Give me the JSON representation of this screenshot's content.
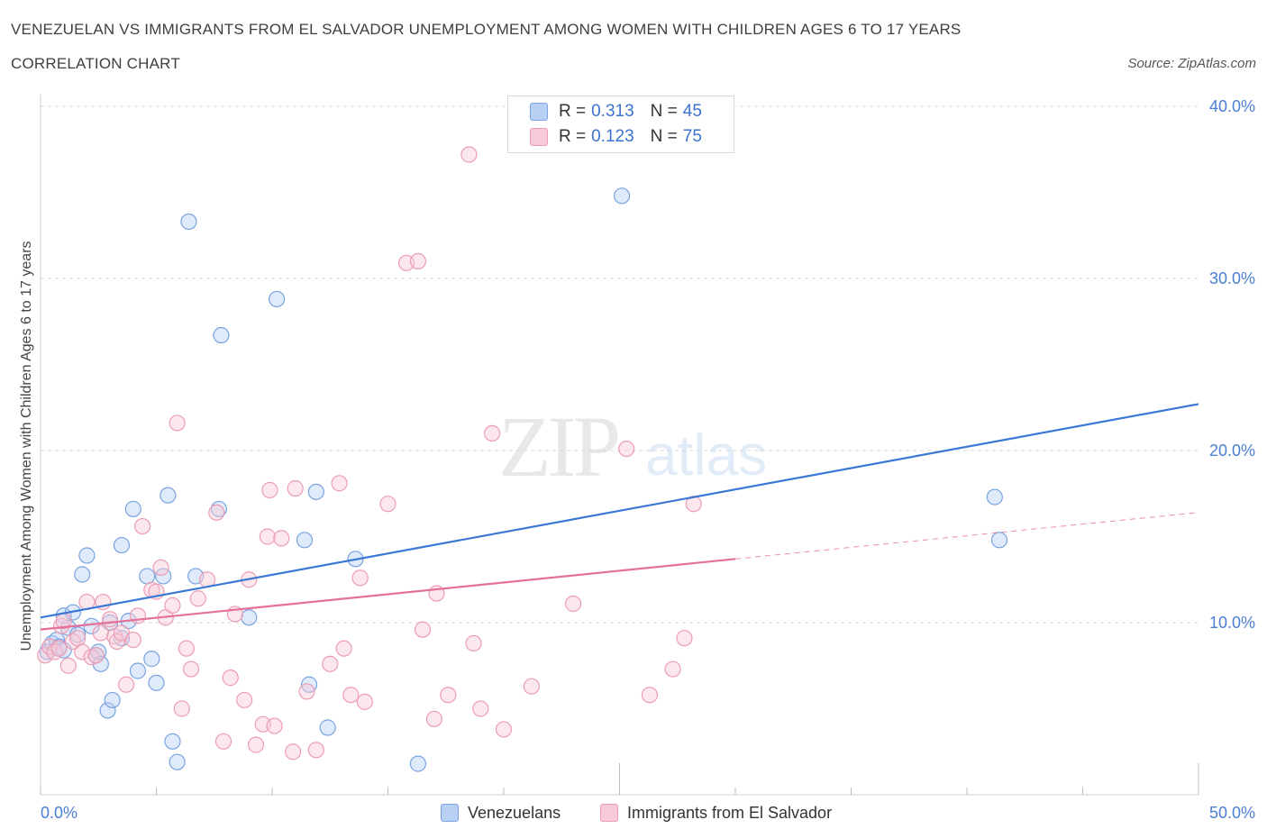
{
  "title": "VENEZUELAN VS IMMIGRANTS FROM EL SALVADOR UNEMPLOYMENT AMONG WOMEN WITH CHILDREN AGES 6 TO 17 YEARS",
  "subtitle": "CORRELATION CHART",
  "source": "Source: ZipAtlas.com",
  "watermark": {
    "zip": "ZIP",
    "atlas": "atlas"
  },
  "legend_top": {
    "rows": [
      {
        "r_label": "R = ",
        "r_value": "0.313",
        "n_label": "N = ",
        "n_value": "45"
      },
      {
        "r_label": "R = ",
        "r_value": "0.123",
        "n_label": "N = ",
        "n_value": "75"
      }
    ]
  },
  "legend_bottom": {
    "series1": "Venezuelans",
    "series2": "Immigrants from El Salvador"
  },
  "colors": {
    "blue": "#3a78d4",
    "pink": "#e4709a",
    "blue_fill": "#b7d0f3",
    "pink_fill": "#f8c9d8"
  },
  "chart_data": {
    "type": "scatter",
    "title": "VENEZUELAN VS IMMIGRANTS FROM EL SALVADOR UNEMPLOYMENT AMONG WOMEN WITH CHILDREN AGES 6 TO 17 YEARS",
    "subtitle": "CORRELATION CHART",
    "ylabel": "Unemployment Among Women with Children Ages 6 to 17 years",
    "xlabel": "",
    "xlim": [
      0,
      50
    ],
    "ylim": [
      0,
      40
    ],
    "x_tick_labels": [
      "0.0%",
      "50.0%"
    ],
    "y_ticks": [
      10,
      20,
      30,
      40
    ],
    "y_tick_labels": [
      "10.0%",
      "20.0%",
      "30.0%",
      "40.0%"
    ],
    "grid": true,
    "legend_position": "top-center",
    "series": [
      {
        "name": "Venezuelans",
        "R": 0.313,
        "N": 45,
        "trend": {
          "x": [
            0,
            50
          ],
          "y": [
            10.3,
            22.7
          ]
        },
        "points": [
          [
            0.3,
            8.3
          ],
          [
            0.5,
            8.8
          ],
          [
            0.7,
            9.0
          ],
          [
            0.8,
            8.6
          ],
          [
            1.0,
            8.4
          ],
          [
            1.0,
            10.4
          ],
          [
            1.2,
            9.7
          ],
          [
            1.4,
            10.6
          ],
          [
            1.6,
            9.3
          ],
          [
            1.8,
            12.8
          ],
          [
            2.0,
            13.9
          ],
          [
            2.2,
            9.8
          ],
          [
            2.4,
            8.1
          ],
          [
            2.5,
            8.3
          ],
          [
            2.6,
            7.6
          ],
          [
            2.9,
            4.9
          ],
          [
            3.0,
            10.0
          ],
          [
            3.1,
            5.5
          ],
          [
            3.5,
            14.5
          ],
          [
            3.5,
            9.1
          ],
          [
            3.8,
            10.1
          ],
          [
            4.0,
            16.6
          ],
          [
            4.2,
            7.2
          ],
          [
            4.6,
            12.7
          ],
          [
            4.8,
            7.9
          ],
          [
            5.0,
            6.5
          ],
          [
            5.3,
            12.7
          ],
          [
            5.5,
            17.4
          ],
          [
            5.7,
            3.1
          ],
          [
            5.9,
            1.9
          ],
          [
            6.4,
            33.3
          ],
          [
            6.7,
            12.7
          ],
          [
            7.7,
            16.6
          ],
          [
            7.8,
            26.7
          ],
          [
            9.0,
            10.3
          ],
          [
            10.2,
            28.8
          ],
          [
            11.4,
            14.8
          ],
          [
            11.6,
            6.4
          ],
          [
            11.9,
            17.6
          ],
          [
            12.4,
            3.9
          ],
          [
            13.6,
            13.7
          ],
          [
            16.3,
            1.8
          ],
          [
            25.1,
            34.8
          ],
          [
            41.2,
            17.3
          ],
          [
            41.4,
            14.8
          ]
        ]
      },
      {
        "name": "Immigrants from El Salvador",
        "R": 0.123,
        "N": 75,
        "trend": {
          "x": [
            0,
            30
          ],
          "y": [
            9.6,
            13.7
          ]
        },
        "trend_extension": {
          "x": [
            30,
            50
          ],
          "y": [
            13.7,
            16.4
          ]
        },
        "points": [
          [
            0.2,
            8.1
          ],
          [
            0.4,
            8.6
          ],
          [
            0.6,
            8.3
          ],
          [
            0.8,
            8.5
          ],
          [
            0.9,
            9.8
          ],
          [
            1.0,
            10.1
          ],
          [
            1.2,
            7.5
          ],
          [
            1.4,
            8.9
          ],
          [
            1.6,
            9.1
          ],
          [
            1.8,
            8.3
          ],
          [
            2.0,
            11.2
          ],
          [
            2.2,
            8.0
          ],
          [
            2.4,
            8.1
          ],
          [
            2.6,
            9.4
          ],
          [
            2.7,
            11.2
          ],
          [
            3.0,
            10.2
          ],
          [
            3.2,
            9.2
          ],
          [
            3.3,
            8.9
          ],
          [
            3.5,
            9.4
          ],
          [
            3.7,
            6.4
          ],
          [
            4.0,
            9.0
          ],
          [
            4.2,
            10.4
          ],
          [
            4.4,
            15.6
          ],
          [
            4.8,
            11.9
          ],
          [
            5.0,
            11.8
          ],
          [
            5.2,
            13.2
          ],
          [
            5.4,
            10.3
          ],
          [
            5.7,
            11.0
          ],
          [
            5.9,
            21.6
          ],
          [
            6.1,
            5.0
          ],
          [
            6.3,
            8.5
          ],
          [
            6.5,
            7.3
          ],
          [
            6.8,
            11.4
          ],
          [
            7.2,
            12.5
          ],
          [
            7.6,
            16.4
          ],
          [
            7.9,
            3.1
          ],
          [
            8.2,
            6.8
          ],
          [
            8.4,
            10.5
          ],
          [
            8.8,
            5.5
          ],
          [
            9.0,
            12.5
          ],
          [
            9.3,
            2.9
          ],
          [
            9.6,
            4.1
          ],
          [
            9.8,
            15.0
          ],
          [
            10.1,
            4.0
          ],
          [
            10.4,
            14.9
          ],
          [
            11.5,
            6.0
          ],
          [
            11.9,
            2.6
          ],
          [
            12.5,
            7.6
          ],
          [
            12.9,
            18.1
          ],
          [
            13.4,
            5.8
          ],
          [
            13.8,
            12.6
          ],
          [
            14.0,
            5.4
          ],
          [
            15.0,
            16.9
          ],
          [
            15.8,
            30.9
          ],
          [
            16.3,
            31.0
          ],
          [
            16.5,
            9.6
          ],
          [
            17.0,
            4.4
          ],
          [
            17.6,
            5.8
          ],
          [
            18.5,
            37.2
          ],
          [
            18.7,
            8.8
          ],
          [
            19.5,
            21.0
          ],
          [
            20.0,
            3.8
          ],
          [
            21.2,
            6.3
          ],
          [
            23.0,
            11.1
          ],
          [
            25.3,
            20.1
          ],
          [
            26.3,
            5.8
          ],
          [
            27.3,
            7.3
          ],
          [
            27.8,
            9.1
          ],
          [
            28.2,
            16.9
          ],
          [
            9.9,
            17.7
          ],
          [
            11.0,
            17.8
          ],
          [
            10.9,
            2.5
          ],
          [
            13.1,
            8.5
          ],
          [
            17.1,
            11.7
          ],
          [
            19.0,
            5.0
          ]
        ]
      }
    ]
  }
}
